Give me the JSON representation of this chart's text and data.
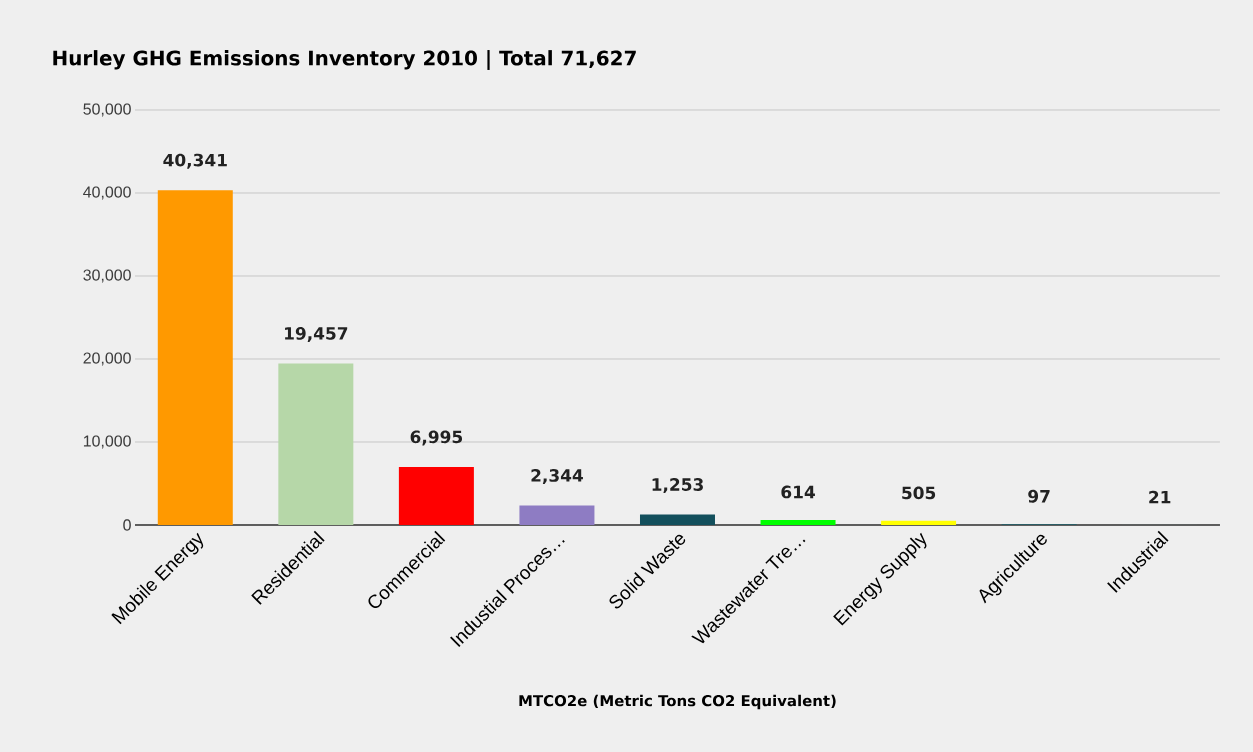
{
  "chart_data": {
    "type": "bar",
    "title": "Hurley GHG Emissions Inventory 2010 | Total 71,627",
    "xlabel": "MTCO2e (Metric Tons CO2 Equivalent)",
    "categories": [
      "Mobile Energy",
      "Residential",
      "Commercial",
      "Industial Proces…",
      "Solid Waste",
      "Wastewater Tre…",
      "Energy Supply",
      "Agriculture",
      "Industrial"
    ],
    "values": [
      40341,
      19457,
      6995,
      2344,
      1253,
      614,
      505,
      97,
      21
    ],
    "value_labels": [
      "40,341",
      "19,457",
      "6,995",
      "2,344",
      "1,253",
      "614",
      "505",
      "97",
      "21"
    ],
    "colors": [
      "#ff9900",
      "#b6d7a8",
      "#ff0000",
      "#8e7cc3",
      "#134f5c",
      "#00ff00",
      "#ffff00",
      "#1c5f6a",
      "#5f6b6d"
    ],
    "ylim": [
      0,
      50000
    ],
    "yticks": [
      {
        "value": 0,
        "label": "0"
      },
      {
        "value": 10000,
        "label": "10,000"
      },
      {
        "value": 20000,
        "label": "20,000"
      },
      {
        "value": 30000,
        "label": "30,000"
      },
      {
        "value": 40000,
        "label": "40,000"
      },
      {
        "value": 50000,
        "label": "50,000"
      }
    ],
    "grid": "y"
  }
}
